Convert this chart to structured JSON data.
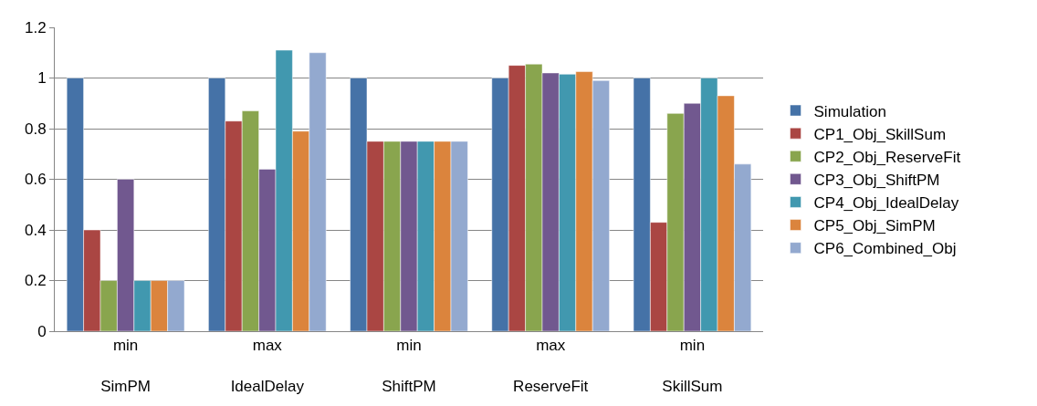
{
  "chart_data": {
    "type": "bar",
    "categories": [
      "min\nSimPM",
      "max\nIdealDelay",
      "min\nShiftPM",
      "max\nReserveFit",
      "min\nSkillSum"
    ],
    "series": [
      {
        "name": "Simulation",
        "color": "#4572a7",
        "values": [
          1,
          1,
          1,
          1,
          1
        ]
      },
      {
        "name": "CP1_Obj_SkillSum",
        "color": "#aa4643",
        "values": [
          0.4,
          0.83,
          0.75,
          1.05,
          0.43
        ]
      },
      {
        "name": "CP2_Obj_ReserveFit",
        "color": "#89a54e",
        "values": [
          0.2,
          0.87,
          0.75,
          1.055,
          0.86
        ]
      },
      {
        "name": "CP3_Obj_ShiftPM",
        "color": "#71588f",
        "values": [
          0.6,
          0.64,
          0.75,
          1.02,
          0.9
        ]
      },
      {
        "name": "CP4_Obj_IdealDelay",
        "color": "#4198af",
        "values": [
          0.2,
          1.11,
          0.75,
          1.015,
          1
        ]
      },
      {
        "name": "CP5_Obj_SimPM",
        "color": "#db843d",
        "values": [
          0.2,
          0.79,
          0.75,
          1.025,
          0.93
        ]
      },
      {
        "name": "CP6_Combined_Obj",
        "color": "#93a9cf",
        "values": [
          0.2,
          1.1,
          0.75,
          0.99,
          0.66
        ]
      }
    ],
    "ylim": [
      0,
      1.2
    ],
    "yticks": [
      0,
      0.2,
      0.4,
      0.6,
      0.8,
      1,
      1.2
    ],
    "grid": "y",
    "legend": "right"
  }
}
